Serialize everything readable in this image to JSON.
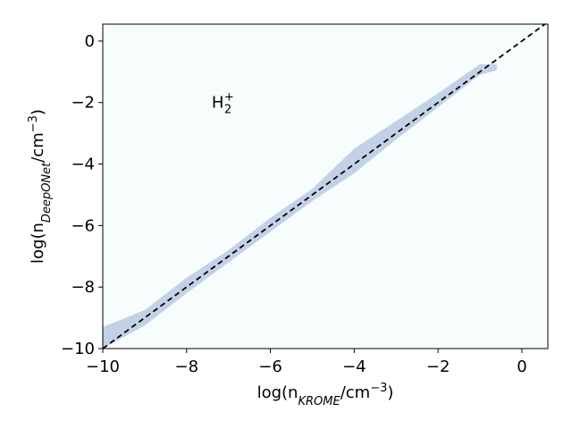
{
  "chart_data": {
    "type": "density",
    "xlim": [
      -10,
      0.62
    ],
    "ylim": [
      -10,
      0.55
    ],
    "xticks": [
      {
        "value": -10,
        "label": "−10"
      },
      {
        "value": -8,
        "label": "−8"
      },
      {
        "value": -6,
        "label": "−6"
      },
      {
        "value": -4,
        "label": "−4"
      },
      {
        "value": -2,
        "label": "−2"
      },
      0
    ],
    "yticks": [
      {
        "value": -10,
        "label": "−10"
      },
      {
        "value": -8,
        "label": "−8"
      },
      {
        "value": -6,
        "label": "−6"
      },
      {
        "value": -4,
        "label": "−4"
      },
      {
        "value": -2,
        "label": "−2"
      },
      0
    ],
    "xlabel": {
      "prefix": "log(n",
      "subscript": "KROME",
      "middle": "/cm",
      "superscript": "−3",
      "suffix": ")"
    },
    "ylabel": {
      "prefix": "log(n",
      "subscript": "DeepONet",
      "middle": "/cm",
      "superscript": "−3",
      "suffix": ")"
    },
    "annotation": {
      "base": "H",
      "subscript": "2",
      "superscript": "+",
      "x": -7.4,
      "y": -2
    },
    "background_color": "#f7fcfd",
    "band": {
      "color": "#b8c9e2",
      "x": [
        -10,
        -9,
        -8,
        -7,
        -6,
        -5,
        -4,
        -3,
        -2,
        -1,
        -0.6
      ],
      "y_low": [
        -10,
        -9.25,
        -8.2,
        -7.2,
        -6.2,
        -5.2,
        -4.3,
        -3.2,
        -2.15,
        -1.1,
        -0.95
      ],
      "y_high": [
        -9.3,
        -8.75,
        -7.7,
        -6.8,
        -5.75,
        -4.8,
        -3.5,
        -2.6,
        -1.7,
        -0.75,
        -0.75
      ]
    },
    "reference_line": {
      "color": "#000000",
      "x": [
        -10,
        0.55
      ],
      "y": [
        -10,
        0.55
      ]
    }
  }
}
